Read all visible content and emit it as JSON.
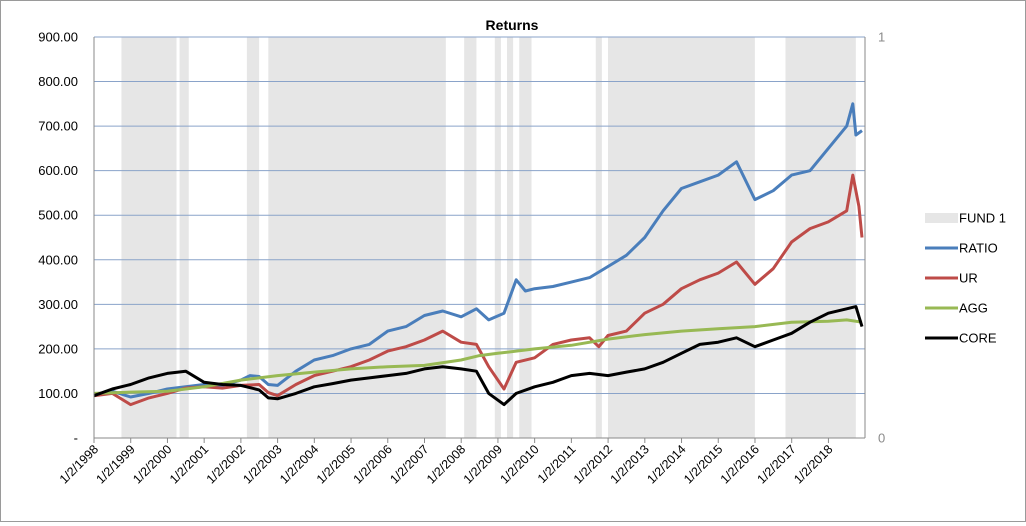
{
  "chart_data": {
    "type": "line",
    "title": "Returns",
    "xlabel": "",
    "ylabel": "",
    "x_range": [
      "1998-01-02",
      "2018-12-31"
    ],
    "ylim": [
      0,
      900
    ],
    "y_ticks": [
      "-",
      "100.00",
      "200.00",
      "300.00",
      "400.00",
      "500.00",
      "600.00",
      "700.00",
      "800.00",
      "900.00"
    ],
    "y2_ticks": [
      "0",
      "1"
    ],
    "y2lim": [
      0,
      1
    ],
    "x_ticks": [
      "1/2/1998",
      "1/2/1999",
      "1/2/2000",
      "1/2/2001",
      "1/2/2002",
      "1/2/2003",
      "1/2/2004",
      "1/2/2005",
      "1/2/2006",
      "1/2/2007",
      "1/2/2008",
      "1/2/2009",
      "1/2/2010",
      "1/2/2011",
      "1/2/2012",
      "1/2/2013",
      "1/2/2014",
      "1/2/2015",
      "1/2/2016",
      "1/2/2017",
      "1/2/2018"
    ],
    "grid": "horizontal",
    "legend_position": "right",
    "fund_periods": {
      "name": "FUND 1",
      "color": "#e6e6e6",
      "periods": [
        [
          "1998-10",
          "2000-04"
        ],
        [
          "2000-05",
          "2000-08"
        ],
        [
          "2002-03",
          "2002-07"
        ],
        [
          "2002-10",
          "2007-08"
        ],
        [
          "2008-02",
          "2008-06"
        ],
        [
          "2008-12",
          "2009-02"
        ],
        [
          "2009-04",
          "2009-06"
        ],
        [
          "2009-08",
          "2009-12"
        ],
        [
          "2011-09",
          "2011-11"
        ],
        [
          "2012-01",
          "2016-01"
        ],
        [
          "2016-11",
          "2018-10"
        ]
      ]
    },
    "series": [
      {
        "name": "RATIO",
        "color": "#4a7ebb",
        "x": [
          "1998-01",
          "1998-07",
          "1999-01",
          "1999-07",
          "2000-01",
          "2000-07",
          "2001-01",
          "2001-07",
          "2002-01",
          "2002-04",
          "2002-07",
          "2002-10",
          "2003-01",
          "2003-07",
          "2004-01",
          "2004-07",
          "2005-01",
          "2005-07",
          "2006-01",
          "2006-07",
          "2007-01",
          "2007-07",
          "2008-01",
          "2008-06",
          "2008-10",
          "2009-03",
          "2009-07",
          "2009-10",
          "2010-01",
          "2010-07",
          "2011-01",
          "2011-07",
          "2012-01",
          "2012-07",
          "2013-01",
          "2013-07",
          "2014-01",
          "2014-07",
          "2015-01",
          "2015-07",
          "2016-01",
          "2016-07",
          "2017-01",
          "2017-07",
          "2018-01",
          "2018-07",
          "2018-09",
          "2018-10",
          "2018-12"
        ],
        "values": [
          95,
          105,
          92,
          100,
          110,
          115,
          120,
          118,
          130,
          140,
          138,
          120,
          118,
          150,
          175,
          185,
          200,
          210,
          240,
          250,
          275,
          285,
          272,
          290,
          265,
          280,
          355,
          330,
          335,
          340,
          350,
          360,
          385,
          410,
          450,
          510,
          560,
          575,
          590,
          620,
          535,
          555,
          590,
          600,
          650,
          700,
          750,
          680,
          690
        ]
      },
      {
        "name": "UR",
        "color": "#be4b48",
        "x": [
          "1998-01",
          "1998-07",
          "1999-01",
          "1999-07",
          "2000-01",
          "2000-07",
          "2001-01",
          "2001-07",
          "2002-01",
          "2002-07",
          "2002-10",
          "2003-01",
          "2003-07",
          "2004-01",
          "2004-07",
          "2005-01",
          "2005-07",
          "2006-01",
          "2006-07",
          "2007-01",
          "2007-07",
          "2008-01",
          "2008-06",
          "2008-10",
          "2009-03",
          "2009-07",
          "2010-01",
          "2010-07",
          "2011-01",
          "2011-07",
          "2011-10",
          "2012-01",
          "2012-07",
          "2013-01",
          "2013-07",
          "2014-01",
          "2014-07",
          "2015-01",
          "2015-07",
          "2016-01",
          "2016-07",
          "2017-01",
          "2017-07",
          "2018-01",
          "2018-07",
          "2018-09",
          "2018-11",
          "2018-12"
        ],
        "values": [
          95,
          100,
          75,
          90,
          100,
          112,
          115,
          112,
          118,
          120,
          102,
          95,
          120,
          140,
          150,
          160,
          175,
          195,
          205,
          220,
          240,
          215,
          210,
          160,
          110,
          170,
          180,
          210,
          220,
          225,
          205,
          230,
          240,
          280,
          300,
          335,
          355,
          370,
          395,
          345,
          380,
          440,
          470,
          485,
          510,
          590,
          520,
          450
        ]
      },
      {
        "name": "AGG",
        "color": "#98b954",
        "x": [
          "1998-01",
          "1999-01",
          "2000-01",
          "2001-01",
          "2002-01",
          "2003-01",
          "2004-01",
          "2005-01",
          "2006-01",
          "2007-01",
          "2008-01",
          "2008-07",
          "2009-01",
          "2010-01",
          "2011-01",
          "2012-01",
          "2013-01",
          "2014-01",
          "2015-01",
          "2016-01",
          "2017-01",
          "2018-01",
          "2018-07",
          "2018-12"
        ],
        "values": [
          100,
          103,
          105,
          115,
          130,
          140,
          148,
          155,
          160,
          163,
          175,
          185,
          190,
          200,
          208,
          222,
          232,
          240,
          245,
          250,
          260,
          262,
          265,
          260
        ]
      },
      {
        "name": "CORE",
        "color": "#000000",
        "x": [
          "1998-01",
          "1998-07",
          "1999-01",
          "1999-07",
          "2000-01",
          "2000-07",
          "2001-01",
          "2001-07",
          "2002-01",
          "2002-07",
          "2002-10",
          "2003-01",
          "2003-07",
          "2004-01",
          "2004-07",
          "2005-01",
          "2005-07",
          "2006-01",
          "2006-07",
          "2007-01",
          "2007-07",
          "2008-01",
          "2008-06",
          "2008-10",
          "2009-03",
          "2009-07",
          "2010-01",
          "2010-07",
          "2011-01",
          "2011-07",
          "2012-01",
          "2012-07",
          "2013-01",
          "2013-07",
          "2014-01",
          "2014-07",
          "2015-01",
          "2015-07",
          "2016-01",
          "2016-07",
          "2017-01",
          "2017-07",
          "2018-01",
          "2018-07",
          "2018-10",
          "2018-12"
        ],
        "values": [
          95,
          110,
          120,
          135,
          145,
          150,
          125,
          120,
          118,
          108,
          90,
          88,
          100,
          115,
          122,
          130,
          135,
          140,
          145,
          155,
          160,
          155,
          150,
          100,
          75,
          100,
          115,
          125,
          140,
          145,
          140,
          148,
          155,
          170,
          190,
          210,
          215,
          225,
          205,
          220,
          235,
          260,
          280,
          290,
          295,
          250
        ]
      }
    ]
  }
}
